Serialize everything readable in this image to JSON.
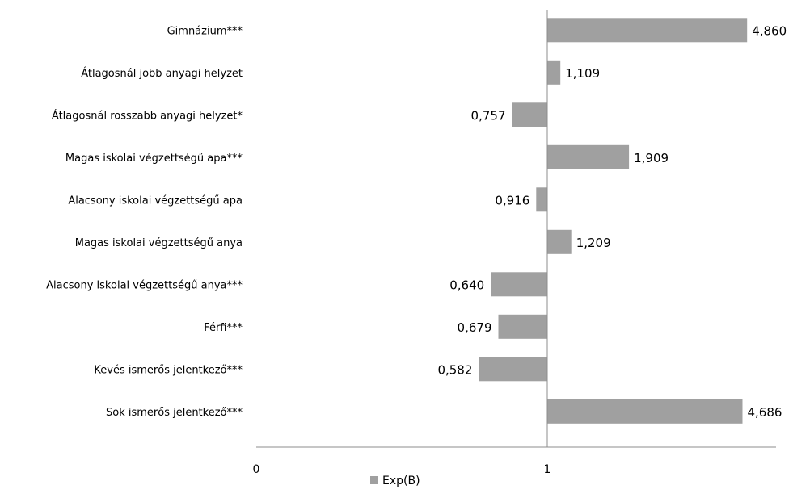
{
  "chart_data": {
    "type": "bar",
    "orientation": "horizontal",
    "title": "",
    "xlabel": "",
    "ylabel": "",
    "baseline": 1,
    "log_scale": true,
    "x_ticks": [
      "0",
      "1"
    ],
    "grid": false,
    "legend_position": "bottom",
    "series": [
      {
        "name": "Exp(B)",
        "color": "#A0A0A0",
        "categories": [
          "Gimnázium***",
          "Átlagosnál jobb anyagi helyzet",
          "Átlagosnál rosszabb anyagi helyzet*",
          "Magas iskolai végzettségű apa***",
          "Alacsony iskolai végzettségű apa",
          "Magas iskolai végzettségű anya",
          "Alacsony iskolai végzettségű anya***",
          "Férfi***",
          "Kevés ismerős jelentkező***",
          "Sok ismerős jelentkező***"
        ],
        "values": [
          4.86,
          1.109,
          0.757,
          1.909,
          0.916,
          1.209,
          0.64,
          0.679,
          0.582,
          4.686
        ],
        "labels": [
          "4,860",
          "1,109",
          "0,757",
          "1,909",
          "0,916",
          "1,209",
          "0,640",
          "0,679",
          "0,582",
          "4,686"
        ]
      }
    ]
  }
}
